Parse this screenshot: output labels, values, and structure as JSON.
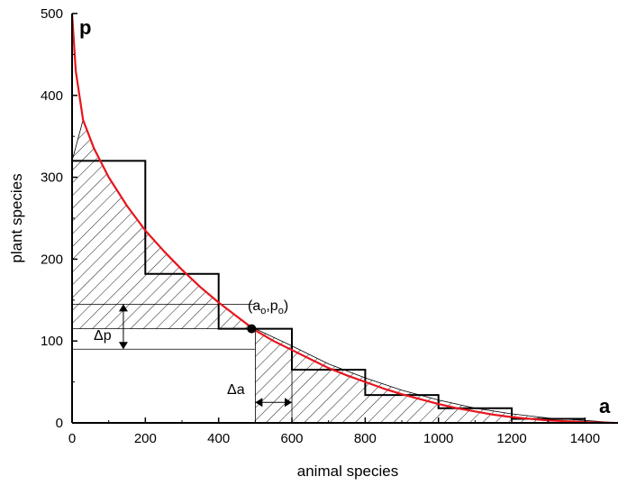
{
  "chart_data": {
    "type": "line",
    "xlabel": "animal species",
    "ylabel": "plant species",
    "xlim": [
      0,
      1490
    ],
    "ylim": [
      0,
      500
    ],
    "x_ticks": [
      0,
      200,
      400,
      600,
      800,
      1000,
      1200,
      1400
    ],
    "y_ticks": [
      0,
      100,
      200,
      300,
      400,
      500
    ],
    "x_tick_labels": [
      "0",
      "200",
      "400",
      "600",
      "800",
      "1000",
      "1200",
      "1400"
    ],
    "y_tick_labels": [
      "0",
      "100",
      "200",
      "300",
      "400",
      "500"
    ],
    "grid": false,
    "corner_labels": {
      "p": "p",
      "a": "a"
    },
    "colors": {
      "curve": "#e8141c",
      "axes": "#000000"
    },
    "series": [
      {
        "style": "red smooth curve",
        "x": [
          0,
          10,
          30,
          60,
          100,
          150,
          200,
          250,
          300,
          350,
          400,
          450,
          500,
          550,
          600,
          650,
          700,
          750,
          800,
          850,
          900,
          950,
          1000,
          1050,
          1100,
          1150,
          1200,
          1250,
          1300,
          1350,
          1400,
          1450,
          1480
        ],
        "y": [
          500,
          430,
          370,
          335,
          300,
          265,
          235,
          210,
          187,
          166,
          147,
          130,
          113,
          100,
          89,
          78,
          67,
          58,
          50,
          42,
          35,
          29,
          23,
          18,
          14,
          10,
          7,
          5,
          3,
          2,
          1,
          0.3,
          0
        ]
      },
      {
        "style": "black staircase",
        "x": [
          0,
          0,
          200,
          200,
          400,
          400,
          600,
          600,
          800,
          800,
          1000,
          1000,
          1200,
          1200,
          1400
        ],
        "y": [
          500,
          320,
          320,
          182,
          182,
          115,
          115,
          65,
          65,
          34,
          34,
          18,
          18,
          5,
          5
        ]
      }
    ],
    "shaded_regions": [
      {
        "name": "plant-side hatched area",
        "x": [
          0,
          0,
          30,
          60,
          100,
          150,
          200,
          250,
          300,
          350,
          400,
          450,
          490
        ],
        "y": [
          115,
          320,
          370,
          335,
          300,
          265,
          235,
          210,
          187,
          166,
          147,
          130,
          115
        ]
      },
      {
        "name": "animal-side hatched area",
        "x": [
          500,
          500,
          600,
          700,
          800,
          900,
          1000,
          1100,
          1200,
          1300,
          1400,
          1490,
          1490
        ],
        "y": [
          0,
          115,
          94,
          72,
          55,
          40,
          28,
          18,
          11,
          6,
          3,
          0,
          0
        ]
      }
    ],
    "highlighted_point": {
      "x": 490,
      "y": 115
    },
    "annotations": {
      "point_label_base": "(a",
      "point_label_sub_a": "o",
      "point_label_mid": ",p",
      "point_label_sub_p": "o",
      "point_label_end": ")",
      "delta_p": "Δp",
      "delta_a": "Δa",
      "delta_p_bounds": [
        90,
        145
      ],
      "delta_a_bounds": [
        500,
        600
      ]
    }
  }
}
